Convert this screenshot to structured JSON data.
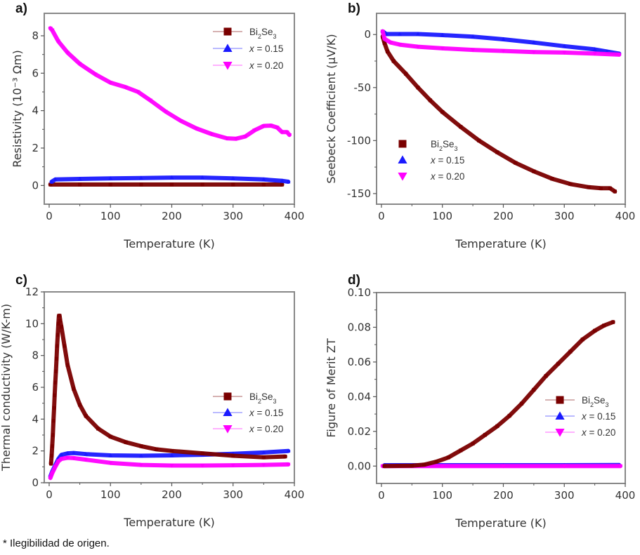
{
  "caption": "* Ilegibilidad de origen.",
  "colors": {
    "Bi2Se3": "#7a0000",
    "x015": "#1a1aff",
    "x020": "#ff00ff",
    "axis": "#888888"
  },
  "chart_data": [
    {
      "id": "a",
      "panel_label": "a)",
      "type": "line",
      "title": "",
      "xlabel": "Temperature (K)",
      "ylabel": "Resistivity (10⁻³ Ωm)",
      "xlim": [
        -8,
        400
      ],
      "ylim": [
        -1,
        9.2
      ],
      "xticks": [
        0,
        100,
        200,
        300,
        400
      ],
      "yticks": [
        0,
        2,
        4,
        6,
        8
      ],
      "grid": false,
      "legend": {
        "placement": "top-right",
        "style": "line-marker"
      },
      "series": [
        {
          "name": "Bi2Se3",
          "name_main": "Bi",
          "sub1": "2",
          "mid": "Se",
          "sub2": "3",
          "color_key": "Bi2Se3",
          "marker": "square",
          "x": [
            2,
            50,
            100,
            150,
            200,
            250,
            300,
            350,
            380
          ],
          "y": [
            0.05,
            0.05,
            0.05,
            0.05,
            0.05,
            0.05,
            0.05,
            0.05,
            0.05
          ]
        },
        {
          "name": "x = 0.15",
          "color_key": "x015",
          "marker": "triangle-up",
          "x": [
            4,
            10,
            50,
            100,
            150,
            200,
            250,
            300,
            350,
            380,
            390
          ],
          "y": [
            0.2,
            0.32,
            0.35,
            0.38,
            0.4,
            0.42,
            0.42,
            0.38,
            0.32,
            0.25,
            0.2
          ]
        },
        {
          "name": "x = 0.20",
          "color_key": "x020",
          "marker": "triangle-down",
          "x": [
            2,
            5,
            15,
            30,
            50,
            75,
            100,
            125,
            145,
            165,
            190,
            215,
            240,
            265,
            290,
            305,
            320,
            335,
            350,
            362,
            372,
            380,
            388,
            392
          ],
          "y": [
            8.4,
            8.3,
            7.7,
            7.1,
            6.5,
            5.95,
            5.5,
            5.25,
            5.0,
            4.55,
            3.95,
            3.45,
            3.05,
            2.75,
            2.52,
            2.5,
            2.62,
            2.95,
            3.18,
            3.2,
            3.1,
            2.85,
            2.85,
            2.7
          ]
        }
      ]
    },
    {
      "id": "b",
      "panel_label": "b)",
      "type": "line",
      "title": "",
      "xlabel": "Temperature (K)",
      "ylabel": "Seebeck Coefficient (μV/K)",
      "xlim": [
        -8,
        400
      ],
      "ylim": [
        -160,
        20
      ],
      "xticks": [
        0,
        100,
        200,
        300,
        400
      ],
      "yticks": [
        0,
        -50,
        -100,
        -150
      ],
      "grid": false,
      "legend": {
        "placement": "bottom-left",
        "style": "marker-only"
      },
      "series": [
        {
          "name": "Bi2Se3",
          "name_main": "Bi",
          "sub1": "2",
          "mid": "Se",
          "sub2": "3",
          "color_key": "Bi2Se3",
          "marker": "square",
          "x": [
            2,
            5,
            10,
            20,
            40,
            60,
            80,
            100,
            130,
            160,
            190,
            220,
            250,
            280,
            310,
            340,
            360,
            375,
            383
          ],
          "y": [
            -2,
            -8,
            -16,
            -25,
            -37,
            -50,
            -62,
            -73,
            -87,
            -100,
            -111,
            -121,
            -129,
            -136,
            -141,
            -144,
            -145,
            -145,
            -148
          ]
        },
        {
          "name": "x = 0.15",
          "color_key": "x015",
          "marker": "triangle-up",
          "x": [
            2,
            8,
            30,
            60,
            100,
            150,
            200,
            250,
            300,
            350,
            370,
            390
          ],
          "y": [
            3,
            0.5,
            0.5,
            0.5,
            -0.5,
            -2,
            -4.5,
            -7.5,
            -11,
            -14,
            -16,
            -18
          ]
        },
        {
          "name": "x = 0.20",
          "color_key": "x020",
          "marker": "triangle-down",
          "x": [
            2,
            5,
            15,
            30,
            60,
            100,
            150,
            200,
            250,
            300,
            350,
            390
          ],
          "y": [
            3,
            -4,
            -7.5,
            -9.5,
            -11.5,
            -13,
            -14.5,
            -15.5,
            -16.5,
            -17,
            -18,
            -19
          ]
        }
      ]
    },
    {
      "id": "c",
      "panel_label": "c)",
      "type": "line",
      "title": "",
      "xlabel": "Temperature (K)",
      "ylabel": "Thermal conductivity (W/K-m)",
      "xlim": [
        -8,
        400
      ],
      "ylim": [
        0,
        12
      ],
      "xticks": [
        0,
        100,
        200,
        300,
        400
      ],
      "yticks": [
        0,
        2,
        4,
        6,
        8,
        10,
        12
      ],
      "grid": false,
      "legend": {
        "placement": "middle-right",
        "style": "line-marker"
      },
      "series": [
        {
          "name": "Bi2Se3",
          "name_main": "Bi",
          "sub1": "2",
          "mid": "Se",
          "sub2": "3",
          "color_key": "Bi2Se3",
          "marker": "square",
          "x": [
            3,
            4,
            5,
            6,
            7,
            8,
            9,
            10,
            11,
            12,
            13,
            14,
            15,
            16,
            17,
            18,
            20,
            25,
            30,
            40,
            50,
            60,
            80,
            100,
            125,
            150,
            175,
            200,
            250,
            300,
            350,
            385
          ],
          "y": [
            1.2,
            1.7,
            2.3,
            3.0,
            3.9,
            4.7,
            5.5,
            6.3,
            7.0,
            7.8,
            8.6,
            9.3,
            10.0,
            10.5,
            10.5,
            10.2,
            9.8,
            8.6,
            7.4,
            5.9,
            4.9,
            4.2,
            3.4,
            2.9,
            2.55,
            2.3,
            2.1,
            2.0,
            1.85,
            1.7,
            1.6,
            1.65
          ]
        },
        {
          "name": "x = 0.15",
          "color_key": "x015",
          "marker": "triangle-up",
          "x": [
            2,
            5,
            10,
            15,
            20,
            30,
            40,
            60,
            100,
            150,
            200,
            250,
            300,
            350,
            390
          ],
          "y": [
            0.4,
            0.7,
            1.1,
            1.5,
            1.75,
            1.85,
            1.87,
            1.8,
            1.72,
            1.7,
            1.72,
            1.76,
            1.82,
            1.9,
            2.0
          ]
        },
        {
          "name": "x = 0.20",
          "color_key": "x020",
          "marker": "triangle-down",
          "x": [
            2,
            5,
            10,
            15,
            20,
            30,
            40,
            60,
            100,
            150,
            200,
            250,
            300,
            350,
            390
          ],
          "y": [
            0.3,
            0.6,
            1.0,
            1.35,
            1.5,
            1.57,
            1.55,
            1.45,
            1.25,
            1.12,
            1.08,
            1.08,
            1.1,
            1.12,
            1.15
          ]
        }
      ]
    },
    {
      "id": "d",
      "panel_label": "d)",
      "type": "line",
      "title": "",
      "xlabel": "Temperature (K)",
      "ylabel": "Figure of Merit ZT",
      "xlim": [
        -8,
        400
      ],
      "ylim": [
        -0.01,
        0.1
      ],
      "xticks": [
        0,
        100,
        200,
        300,
        400
      ],
      "yticks": [
        0.0,
        0.02,
        0.04,
        0.06,
        0.08,
        0.1
      ],
      "ytick_labels": [
        "0.00",
        "0.02",
        "0.04",
        "0.06",
        "0.08",
        "0.10"
      ],
      "grid": false,
      "legend": {
        "placement": "middle-right",
        "style": "line-marker"
      },
      "series": [
        {
          "name": "Bi2Se3",
          "name_main": "Bi",
          "sub1": "2",
          "mid": "Se",
          "sub2": "3",
          "color_key": "Bi2Se3",
          "marker": "square",
          "x": [
            5,
            50,
            70,
            90,
            110,
            130,
            150,
            170,
            190,
            210,
            230,
            250,
            270,
            290,
            310,
            330,
            350,
            365,
            380
          ],
          "y": [
            0.0,
            0.0002,
            0.0008,
            0.0025,
            0.005,
            0.009,
            0.013,
            0.018,
            0.023,
            0.029,
            0.036,
            0.044,
            0.052,
            0.059,
            0.066,
            0.073,
            0.078,
            0.081,
            0.083
          ]
        },
        {
          "name": "x = 0.15",
          "color_key": "x015",
          "marker": "triangle-up",
          "x": [
            5,
            100,
            200,
            300,
            390
          ],
          "y": [
            0.0005,
            0.0005,
            0.0005,
            0.0005,
            0.0006
          ]
        },
        {
          "name": "x = 0.20",
          "color_key": "x020",
          "marker": "triangle-down",
          "x": [
            2,
            100,
            200,
            300,
            392
          ],
          "y": [
            0.0,
            0.0,
            0.0,
            0.0,
            0.0
          ]
        }
      ]
    }
  ]
}
